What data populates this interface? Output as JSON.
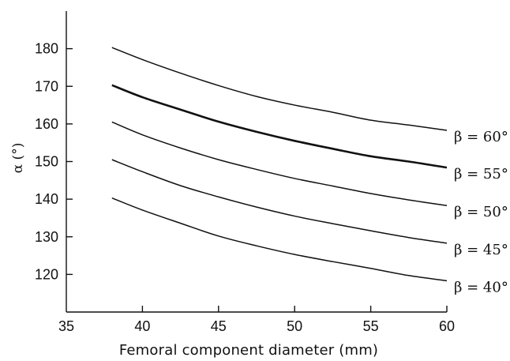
{
  "chart_data": {
    "type": "line",
    "title": "",
    "xlabel": "Femoral component diameter (mm)",
    "ylabel": "α (°)",
    "xlim": [
      35,
      60
    ],
    "ylim": [
      110,
      190
    ],
    "x_ticks": [
      "35",
      "40",
      "45",
      "50",
      "55",
      "60"
    ],
    "y_ticks": [
      "120",
      "130",
      "140",
      "150",
      "160",
      "170",
      "180"
    ],
    "x_tick_values": [
      35,
      40,
      45,
      50,
      55,
      60
    ],
    "y_tick_values": [
      120,
      130,
      140,
      150,
      160,
      170,
      180
    ],
    "grid": false,
    "legend": "none",
    "series": [
      {
        "name": "β = 60°",
        "bold": false,
        "x": [
          38,
          40,
          42.5,
          45,
          47.5,
          50,
          52.5,
          55,
          57.5,
          60
        ],
        "y": [
          180.3,
          177.1,
          173.5,
          170.2,
          167.3,
          165.0,
          163.1,
          161.0,
          159.7,
          158.3
        ]
      },
      {
        "name": "β = 55°",
        "bold": true,
        "x": [
          38,
          40,
          42.5,
          45,
          47.5,
          50,
          52.5,
          55,
          57.5,
          60
        ],
        "y": [
          170.3,
          167.1,
          163.8,
          160.6,
          157.9,
          155.5,
          153.4,
          151.4,
          150.0,
          148.4
        ]
      },
      {
        "name": "β = 50°",
        "bold": false,
        "x": [
          38,
          40,
          42.5,
          45,
          47.5,
          50,
          52.5,
          55,
          57.5,
          60
        ],
        "y": [
          160.5,
          157.1,
          153.6,
          150.5,
          147.9,
          145.5,
          143.5,
          141.5,
          139.8,
          138.3
        ]
      },
      {
        "name": "β = 45°",
        "bold": false,
        "x": [
          38,
          40,
          42.5,
          45,
          47.5,
          50,
          52.5,
          55,
          57.5,
          60
        ],
        "y": [
          150.5,
          147.3,
          143.6,
          140.6,
          137.9,
          135.5,
          133.5,
          131.6,
          129.8,
          128.3
        ]
      },
      {
        "name": "β = 40°",
        "bold": false,
        "x": [
          38,
          40,
          42.5,
          45,
          47.5,
          50,
          52.5,
          55,
          57.5,
          60
        ],
        "y": [
          140.3,
          137.1,
          133.6,
          130.2,
          127.6,
          125.3,
          123.4,
          121.6,
          119.7,
          118.3
        ]
      }
    ]
  }
}
